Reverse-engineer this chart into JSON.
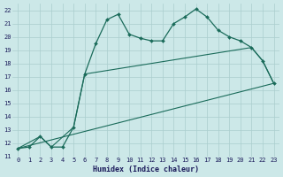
{
  "xlabel": "Humidex (Indice chaleur)",
  "bg_color": "#cce8e8",
  "line_color": "#1a6b5a",
  "grid_color": "#aacece",
  "xlim": [
    -0.5,
    23.5
  ],
  "ylim": [
    11,
    22.5
  ],
  "yticks": [
    11,
    12,
    13,
    14,
    15,
    16,
    17,
    18,
    19,
    20,
    21,
    22
  ],
  "xticks": [
    0,
    1,
    2,
    3,
    4,
    5,
    6,
    7,
    8,
    9,
    10,
    11,
    12,
    13,
    14,
    15,
    16,
    17,
    18,
    19,
    20,
    21,
    22,
    23
  ],
  "line1_x": [
    0,
    1,
    2,
    3,
    4,
    5,
    6,
    7,
    8,
    9,
    10,
    11,
    12,
    13,
    14,
    15,
    16,
    17,
    18,
    19,
    20,
    21,
    22,
    23
  ],
  "line1_y": [
    11.6,
    11.7,
    12.5,
    11.7,
    11.7,
    13.2,
    17.2,
    19.5,
    21.3,
    21.7,
    20.2,
    19.9,
    19.7,
    19.7,
    21.0,
    21.5,
    22.1,
    21.5,
    20.5,
    20.0,
    19.7,
    19.2,
    18.2,
    16.5
  ],
  "line2_x": [
    0,
    2,
    3,
    5,
    6,
    21,
    22,
    23
  ],
  "line2_y": [
    11.6,
    12.5,
    11.7,
    13.2,
    17.2,
    19.2,
    18.2,
    16.5
  ],
  "line3_x": [
    0,
    23
  ],
  "line3_y": [
    11.6,
    16.5
  ]
}
